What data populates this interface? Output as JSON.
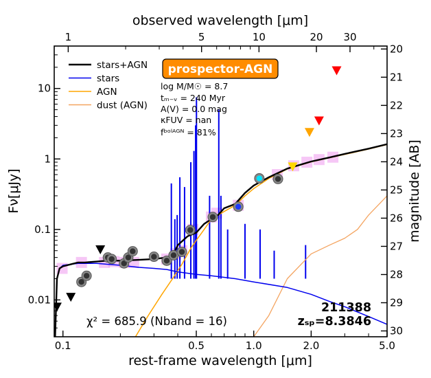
{
  "chart_data": {
    "type": "sed",
    "xlabel": "rest-frame wavelength [μm]",
    "x2label": "observed wavelength [μm]",
    "ylabel": "Fν[μJy]",
    "y2label": "magnitude [AB]",
    "xlim": [
      0.09,
      5.0
    ],
    "ylim": [
      0.003,
      40
    ],
    "redshift": 8.3846,
    "x_ticks": [
      {
        "value": 0.1,
        "label": "0.1"
      },
      {
        "value": 0.5,
        "label": "0.5"
      },
      {
        "value": 1.0,
        "label": "1.0"
      },
      {
        "value": 2.0,
        "label": "2.0"
      },
      {
        "value": 5.0,
        "label": "5.0"
      }
    ],
    "x2_ticks": [
      {
        "value": 1,
        "label": "1"
      },
      {
        "value": 5,
        "label": "5"
      },
      {
        "value": 10,
        "label": "10"
      },
      {
        "value": 20,
        "label": "20"
      },
      {
        "value": 30,
        "label": "30"
      }
    ],
    "y_ticks": [
      {
        "value": 0.01,
        "label": "0.01"
      },
      {
        "value": 0.1,
        "label": "0.1"
      },
      {
        "value": 1,
        "label": "1"
      },
      {
        "value": 10,
        "label": "10"
      }
    ],
    "mag_ticks": [
      {
        "value": 20,
        "label": "20"
      },
      {
        "value": 21,
        "label": "21"
      },
      {
        "value": 22,
        "label": "22"
      },
      {
        "value": 23,
        "label": "23"
      },
      {
        "value": 24,
        "label": "24"
      },
      {
        "value": 25,
        "label": "25"
      },
      {
        "value": 26,
        "label": "26"
      },
      {
        "value": 27,
        "label": "27"
      },
      {
        "value": 28,
        "label": "28"
      },
      {
        "value": 29,
        "label": "29"
      },
      {
        "value": 30,
        "label": "30"
      }
    ],
    "legend": [
      {
        "label": "stars+AGN",
        "color": "#000000",
        "width": 2.5
      },
      {
        "label": "stars",
        "color": "#0000ee",
        "width": 1.5
      },
      {
        "label": "AGN",
        "color": "#ffa500",
        "width": 1.5
      },
      {
        "label": "dust (AGN)",
        "color": "#f4a460",
        "width": 1.5
      }
    ],
    "series": [
      {
        "name": "stars+AGN",
        "color": "#000000",
        "x": [
          0.091,
          0.093,
          0.096,
          0.1,
          0.11,
          0.12,
          0.13,
          0.15,
          0.17,
          0.2,
          0.25,
          0.3,
          0.35,
          0.38,
          0.4,
          0.45,
          0.5,
          0.55,
          0.6,
          0.65,
          0.7,
          0.8,
          0.9,
          1.0,
          1.2,
          1.5,
          2.0,
          2.5,
          3.0,
          4.0,
          5.0
        ],
        "y": [
          0.003,
          0.02,
          0.028,
          0.03,
          0.032,
          0.034,
          0.034,
          0.035,
          0.036,
          0.036,
          0.037,
          0.038,
          0.04,
          0.045,
          0.06,
          0.08,
          0.09,
          0.12,
          0.14,
          0.16,
          0.2,
          0.23,
          0.33,
          0.42,
          0.55,
          0.73,
          0.92,
          1.05,
          1.18,
          1.4,
          1.62
        ]
      },
      {
        "name": "stars",
        "color": "#0000ee",
        "x": [
          0.091,
          0.093,
          0.096,
          0.1,
          0.12,
          0.15,
          0.2,
          0.25,
          0.3,
          0.35,
          0.4,
          0.5,
          0.6,
          0.8,
          1.0,
          1.5,
          2.0,
          2.5,
          3.0,
          4.0,
          5.0
        ],
        "y": [
          0.003,
          0.02,
          0.028,
          0.031,
          0.033,
          0.033,
          0.031,
          0.029,
          0.028,
          0.027,
          0.025,
          0.023,
          0.022,
          0.02,
          0.018,
          0.015,
          0.012,
          0.0095,
          0.008,
          0.0058,
          0.0045
        ]
      },
      {
        "name": "AGN",
        "color": "#ffa500",
        "x": [
          0.24,
          0.28,
          0.33,
          0.38,
          0.42,
          0.47,
          0.5,
          0.55,
          0.6,
          0.7,
          0.8,
          0.9,
          1.0,
          1.2,
          1.5,
          2.0,
          2.5,
          3.0,
          4.0,
          5.0
        ],
        "y": [
          0.003,
          0.006,
          0.012,
          0.021,
          0.032,
          0.055,
          0.07,
          0.1,
          0.14,
          0.18,
          0.22,
          0.3,
          0.38,
          0.53,
          0.72,
          0.91,
          1.04,
          1.16,
          1.38,
          1.6
        ]
      },
      {
        "name": "dust (AGN)",
        "color": "#f4a460",
        "x": [
          1.0,
          1.2,
          1.5,
          2.0,
          2.5,
          3.0,
          3.5,
          4.0,
          5.0
        ],
        "y": [
          0.003,
          0.006,
          0.02,
          0.045,
          0.06,
          0.075,
          0.1,
          0.16,
          0.3
        ]
      }
    ],
    "emission_lines": [
      {
        "x": 0.37,
        "peak": 0.45
      },
      {
        "x": 0.386,
        "peak": 0.14
      },
      {
        "x": 0.397,
        "peak": 0.16
      },
      {
        "x": 0.41,
        "peak": 0.55
      },
      {
        "x": 0.434,
        "peak": 0.4
      },
      {
        "x": 0.468,
        "peak": 0.9
      },
      {
        "x": 0.486,
        "peak": 1.3
      },
      {
        "x": 0.496,
        "peak": 3.0
      },
      {
        "x": 0.501,
        "peak": 7.5
      },
      {
        "x": 0.587,
        "peak": 0.3
      },
      {
        "x": 0.656,
        "peak": 5.0
      },
      {
        "x": 0.673,
        "peak": 0.3
      },
      {
        "x": 0.73,
        "peak": 0.1
      },
      {
        "x": 0.9,
        "peak": 0.12
      },
      {
        "x": 1.08,
        "peak": 0.1
      },
      {
        "x": 1.28,
        "peak": 0.05
      },
      {
        "x": 1.87,
        "peak": 0.06
      }
    ],
    "model_photometry": [
      {
        "x": 0.099,
        "y": 0.028
      },
      {
        "x": 0.125,
        "y": 0.034
      },
      {
        "x": 0.165,
        "y": 0.034
      },
      {
        "x": 0.185,
        "y": 0.035
      },
      {
        "x": 0.21,
        "y": 0.034
      },
      {
        "x": 0.235,
        "y": 0.034
      },
      {
        "x": 0.35,
        "y": 0.038
      },
      {
        "x": 0.39,
        "y": 0.045
      },
      {
        "x": 0.42,
        "y": 0.05
      },
      {
        "x": 0.48,
        "y": 0.1
      },
      {
        "x": 0.6,
        "y": 0.15
      },
      {
        "x": 0.64,
        "y": 0.17
      },
      {
        "x": 0.83,
        "y": 0.22
      },
      {
        "x": 1.33,
        "y": 0.6
      },
      {
        "x": 1.62,
        "y": 0.8
      },
      {
        "x": 1.9,
        "y": 0.9
      },
      {
        "x": 2.2,
        "y": 0.98
      },
      {
        "x": 2.6,
        "y": 1.06
      }
    ],
    "detections": [
      {
        "x": 0.125,
        "y": 0.018,
        "color": "#333333"
      },
      {
        "x": 0.133,
        "y": 0.022,
        "color": "#333333"
      },
      {
        "x": 0.172,
        "y": 0.04,
        "color": "#333333"
      },
      {
        "x": 0.18,
        "y": 0.038,
        "color": "#333333"
      },
      {
        "x": 0.209,
        "y": 0.033,
        "color": "#333333"
      },
      {
        "x": 0.22,
        "y": 0.04,
        "color": "#333333"
      },
      {
        "x": 0.232,
        "y": 0.049,
        "color": "#333333"
      },
      {
        "x": 0.3,
        "y": 0.041,
        "color": "#333333"
      },
      {
        "x": 0.35,
        "y": 0.036,
        "color": "#333333"
      },
      {
        "x": 0.38,
        "y": 0.043,
        "color": "#333333"
      },
      {
        "x": 0.42,
        "y": 0.048,
        "color": "#333333"
      },
      {
        "x": 0.465,
        "y": 0.098,
        "color": "#333333"
      },
      {
        "x": 0.61,
        "y": 0.15,
        "color": "#333333"
      },
      {
        "x": 0.83,
        "y": 0.21,
        "color": "#1e3aff"
      },
      {
        "x": 1.07,
        "y": 0.53,
        "color": "#00e5ff"
      },
      {
        "x": 1.34,
        "y": 0.52,
        "color": "#333333"
      }
    ],
    "upper_limits": [
      {
        "x": 0.093,
        "y": 0.008,
        "color": "#000000"
      },
      {
        "x": 0.11,
        "y": 0.011,
        "color": "#000000"
      },
      {
        "x": 0.157,
        "y": 0.052,
        "color": "#000000"
      },
      {
        "x": 1.6,
        "y": 0.78,
        "color": "#ffd700"
      },
      {
        "x": 1.96,
        "y": 2.4,
        "color": "#ffa500"
      },
      {
        "x": 2.2,
        "y": 3.5,
        "color": "#ff0000"
      },
      {
        "x": 2.72,
        "y": 18.0,
        "color": "#ff0000"
      }
    ],
    "badge": "prospector-AGN",
    "params": [
      "log M/M☉ = 8.7",
      "tₘ₋ᵥ = 240 Myr",
      "A(V) = 0.0 mag",
      "κFUV = nan",
      "fᵇᵒˡᴬᴳᴺ = 81%"
    ],
    "chi2_text": "χ² = 685.9 (Nband = 16)",
    "object_id": "211388",
    "z_text": "zₛₚ=8.3846"
  }
}
